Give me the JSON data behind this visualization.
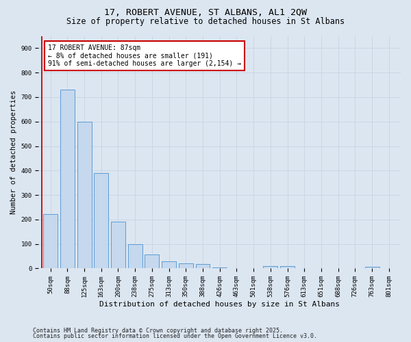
{
  "title_line1": "17, ROBERT AVENUE, ST ALBANS, AL1 2QW",
  "title_line2": "Size of property relative to detached houses in St Albans",
  "xlabel": "Distribution of detached houses by size in St Albans",
  "ylabel": "Number of detached properties",
  "categories": [
    "50sqm",
    "88sqm",
    "125sqm",
    "163sqm",
    "200sqm",
    "238sqm",
    "275sqm",
    "313sqm",
    "350sqm",
    "388sqm",
    "426sqm",
    "463sqm",
    "501sqm",
    "538sqm",
    "576sqm",
    "613sqm",
    "651sqm",
    "688sqm",
    "726sqm",
    "763sqm",
    "801sqm"
  ],
  "values": [
    222,
    730,
    598,
    390,
    190,
    98,
    58,
    28,
    20,
    18,
    3,
    0,
    0,
    10,
    10,
    0,
    0,
    0,
    0,
    8,
    0
  ],
  "bar_color": "#c5d8ed",
  "bar_edge_color": "#5b9bd5",
  "annotation_text": "17 ROBERT AVENUE: 87sqm\n← 8% of detached houses are smaller (191)\n91% of semi-detached houses are larger (2,154) →",
  "annotation_box_color": "#ffffff",
  "annotation_box_edge": "#cc0000",
  "vline_color": "#cc0000",
  "grid_color": "#c8d4e3",
  "background_color": "#dce6f1",
  "plot_bg_color": "#dce6f1",
  "ylim": [
    0,
    950
  ],
  "yticks": [
    0,
    100,
    200,
    300,
    400,
    500,
    600,
    700,
    800,
    900
  ],
  "footer_line1": "Contains HM Land Registry data © Crown copyright and database right 2025.",
  "footer_line2": "Contains public sector information licensed under the Open Government Licence v3.0.",
  "title_fontsize": 9.5,
  "subtitle_fontsize": 8.5,
  "xlabel_fontsize": 8,
  "ylabel_fontsize": 7.5,
  "tick_fontsize": 6.5,
  "annotation_fontsize": 7,
  "footer_fontsize": 6
}
